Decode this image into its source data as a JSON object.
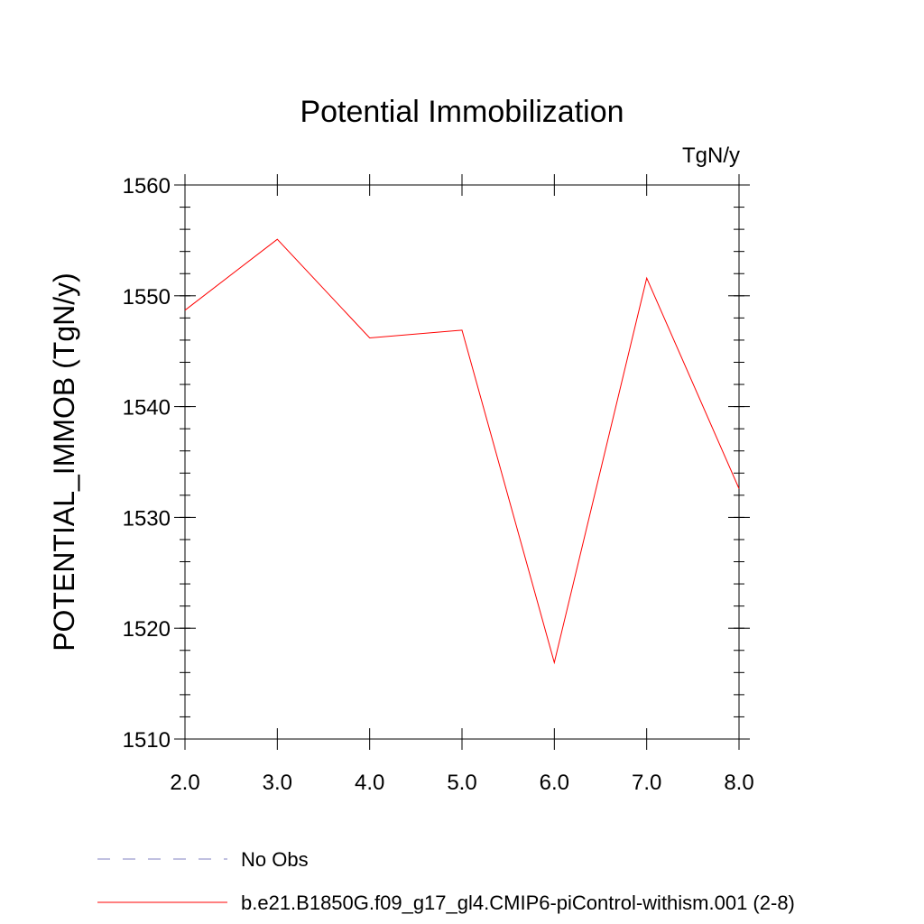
{
  "chart_data": {
    "type": "line",
    "title": "Potential Immobilization",
    "units": "TgN/y",
    "xlabel": "",
    "ylabel": "POTENTIAL_IMMOB  (TgN/y)",
    "xlim": [
      2.0,
      8.0
    ],
    "ylim": [
      1510,
      1560
    ],
    "x_ticks": [
      "2.0",
      "3.0",
      "4.0",
      "5.0",
      "6.0",
      "7.0",
      "8.0"
    ],
    "y_ticks": [
      "1510",
      "1520",
      "1530",
      "1540",
      "1550",
      "1560"
    ],
    "grid": false,
    "legend_position": "bottom",
    "series": [
      {
        "name": "b.e21.B1850G.f09_g17_gl4.CMIP6-piControl-withism.001 (2-8)",
        "color": "#ff0000",
        "style": "solid",
        "x": [
          2.0,
          3.0,
          4.0,
          5.0,
          6.0,
          7.0,
          8.0
        ],
        "y": [
          1548.7,
          1555.1,
          1546.2,
          1546.9,
          1516.9,
          1551.6,
          1532.6
        ]
      },
      {
        "name": "No Obs",
        "color": "#8080c0",
        "style": "dashed",
        "x": [],
        "y": []
      }
    ]
  }
}
